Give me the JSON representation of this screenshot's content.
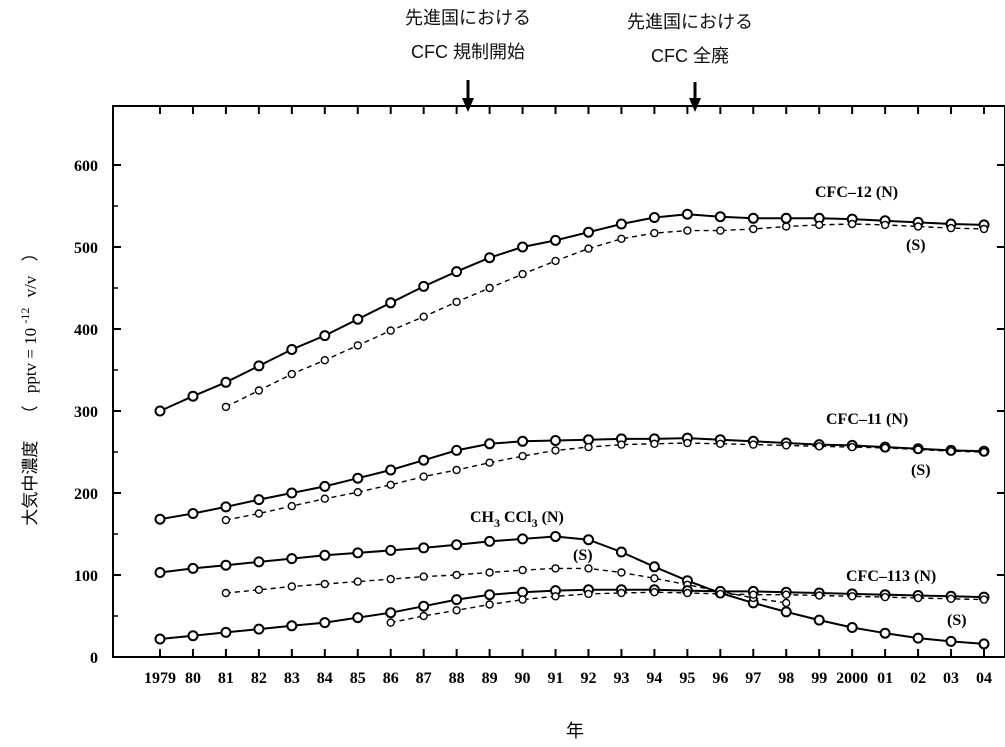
{
  "chart_data": {
    "type": "line",
    "title": "",
    "xlabel": "年",
    "ylabel": "大気中濃度 （ pptv = 10^-12 v/v ）",
    "ylabel_parts": {
      "main": "大気中濃度",
      "paren_open": "（",
      "unit_text": "pptv = 10",
      "exponent": "-12",
      "unit_tail": "v/v",
      "paren_close": "）"
    },
    "xlim": [
      1979,
      2004
    ],
    "ylim": [
      0,
      600
    ],
    "x_tick_labels": [
      "1979",
      "80",
      "81",
      "82",
      "83",
      "84",
      "85",
      "86",
      "87",
      "88",
      "89",
      "90",
      "91",
      "92",
      "93",
      "94",
      "95",
      "96",
      "97",
      "98",
      "99",
      "2000",
      "01",
      "02",
      "03",
      "04"
    ],
    "y_ticks": [
      0,
      100,
      200,
      300,
      400,
      500,
      600
    ],
    "annotations": [
      {
        "line1": "先進国における",
        "line2": "CFC 規制開始",
        "x": 1988
      },
      {
        "line1": "先進国における",
        "line2": "CFC 全廃",
        "x": 1995
      }
    ],
    "series_labels": {
      "cfc12_n": "CFC–12 (N)",
      "cfc12_s": "(S)",
      "cfc11_n": "CFC–11 (N)",
      "cfc11_s": "(S)",
      "ch3ccl3_n_a": "CH",
      "ch3ccl3_n_b": "3",
      "ch3ccl3_n_c": " CCl",
      "ch3ccl3_n_d": "3",
      "ch3ccl3_n_e": " (N)",
      "ch3ccl3_s": "(S)",
      "cfc113_n": "CFC–113 (N)",
      "cfc113_s": "(S)"
    },
    "series": [
      {
        "id": "cfc12_n",
        "dashed": false,
        "x": [
          1979,
          1980,
          1981,
          1982,
          1983,
          1984,
          1985,
          1986,
          1987,
          1988,
          1989,
          1990,
          1991,
          1992,
          1993,
          1994,
          1995,
          1996,
          1997,
          1998,
          1999,
          2000,
          2001,
          2002,
          2003,
          2004
        ],
        "y": [
          300,
          318,
          335,
          355,
          375,
          392,
          412,
          432,
          452,
          470,
          487,
          500,
          508,
          518,
          528,
          536,
          540,
          537,
          535,
          535,
          535,
          534,
          532,
          530,
          528,
          527
        ]
      },
      {
        "id": "cfc12_s",
        "dashed": true,
        "x": [
          1981,
          1982,
          1983,
          1984,
          1985,
          1986,
          1987,
          1988,
          1989,
          1990,
          1991,
          1992,
          1993,
          1994,
          1995,
          1996,
          1997,
          1998,
          1999,
          2000,
          2001,
          2002,
          2003,
          2004
        ],
        "y": [
          305,
          325,
          345,
          362,
          380,
          398,
          415,
          433,
          450,
          467,
          483,
          498,
          510,
          517,
          520,
          520,
          522,
          525,
          527,
          528,
          527,
          525,
          523,
          522
        ]
      },
      {
        "id": "cfc11_n",
        "dashed": false,
        "x": [
          1979,
          1980,
          1981,
          1982,
          1983,
          1984,
          1985,
          1986,
          1987,
          1988,
          1989,
          1990,
          1991,
          1992,
          1993,
          1994,
          1995,
          1996,
          1997,
          1998,
          1999,
          2000,
          2001,
          2002,
          2003,
          2004
        ],
        "y": [
          168,
          175,
          183,
          192,
          200,
          208,
          218,
          228,
          240,
          252,
          260,
          263,
          264,
          265,
          266,
          266,
          267,
          265,
          263,
          261,
          259,
          258,
          256,
          254,
          252,
          251
        ]
      },
      {
        "id": "cfc11_s",
        "dashed": true,
        "x": [
          1981,
          1982,
          1983,
          1984,
          1985,
          1986,
          1987,
          1988,
          1989,
          1990,
          1991,
          1992,
          1993,
          1994,
          1995,
          1996,
          1997,
          1998,
          1999,
          2000,
          2001,
          2002,
          2003,
          2004
        ],
        "y": [
          167,
          175,
          184,
          193,
          201,
          210,
          220,
          228,
          237,
          245,
          252,
          256,
          259,
          260,
          261,
          260,
          259,
          258,
          257,
          256,
          255,
          253,
          251,
          250
        ]
      },
      {
        "id": "ch3ccl3_n",
        "dashed": false,
        "x": [
          1979,
          1980,
          1981,
          1982,
          1983,
          1984,
          1985,
          1986,
          1987,
          1988,
          1989,
          1990,
          1991,
          1992,
          1993,
          1994,
          1995,
          1996,
          1997,
          1998,
          1999,
          2000,
          2001,
          2002,
          2003,
          2004
        ],
        "y": [
          103,
          108,
          112,
          116,
          120,
          124,
          127,
          130,
          133,
          137,
          141,
          144,
          147,
          143,
          128,
          110,
          93,
          78,
          66,
          55,
          45,
          36,
          29,
          23,
          19,
          16
        ]
      },
      {
        "id": "ch3ccl3_s",
        "dashed": true,
        "x": [
          1981,
          1982,
          1983,
          1984,
          1985,
          1986,
          1987,
          1988,
          1989,
          1990,
          1991,
          1992,
          1993,
          1994,
          1995,
          1996,
          1997,
          1998
        ],
        "y": [
          78,
          82,
          86,
          89,
          92,
          95,
          98,
          100,
          103,
          106,
          108,
          108,
          103,
          96,
          88,
          80,
          72,
          66
        ]
      },
      {
        "id": "cfc113_n",
        "dashed": false,
        "x": [
          1979,
          1980,
          1981,
          1982,
          1983,
          1984,
          1985,
          1986,
          1987,
          1988,
          1989,
          1990,
          1991,
          1992,
          1993,
          1994,
          1995,
          1996,
          1997,
          1998,
          1999,
          2000,
          2001,
          2002,
          2003,
          2004
        ],
        "y": [
          22,
          26,
          30,
          34,
          38,
          42,
          48,
          54,
          62,
          70,
          76,
          79,
          81,
          82,
          82,
          82,
          81,
          80,
          80,
          79,
          78,
          77,
          76,
          75,
          74,
          73
        ]
      },
      {
        "id": "cfc113_s",
        "dashed": true,
        "x": [
          1986,
          1987,
          1988,
          1989,
          1990,
          1991,
          1992,
          1993,
          1994,
          1995,
          1996,
          1997,
          1998,
          1999,
          2000,
          2001,
          2002,
          2003,
          2004
        ],
        "y": [
          42,
          50,
          57,
          64,
          70,
          74,
          77,
          78,
          79,
          78,
          77,
          76,
          76,
          75,
          74,
          73,
          72,
          71,
          70
        ]
      }
    ]
  }
}
